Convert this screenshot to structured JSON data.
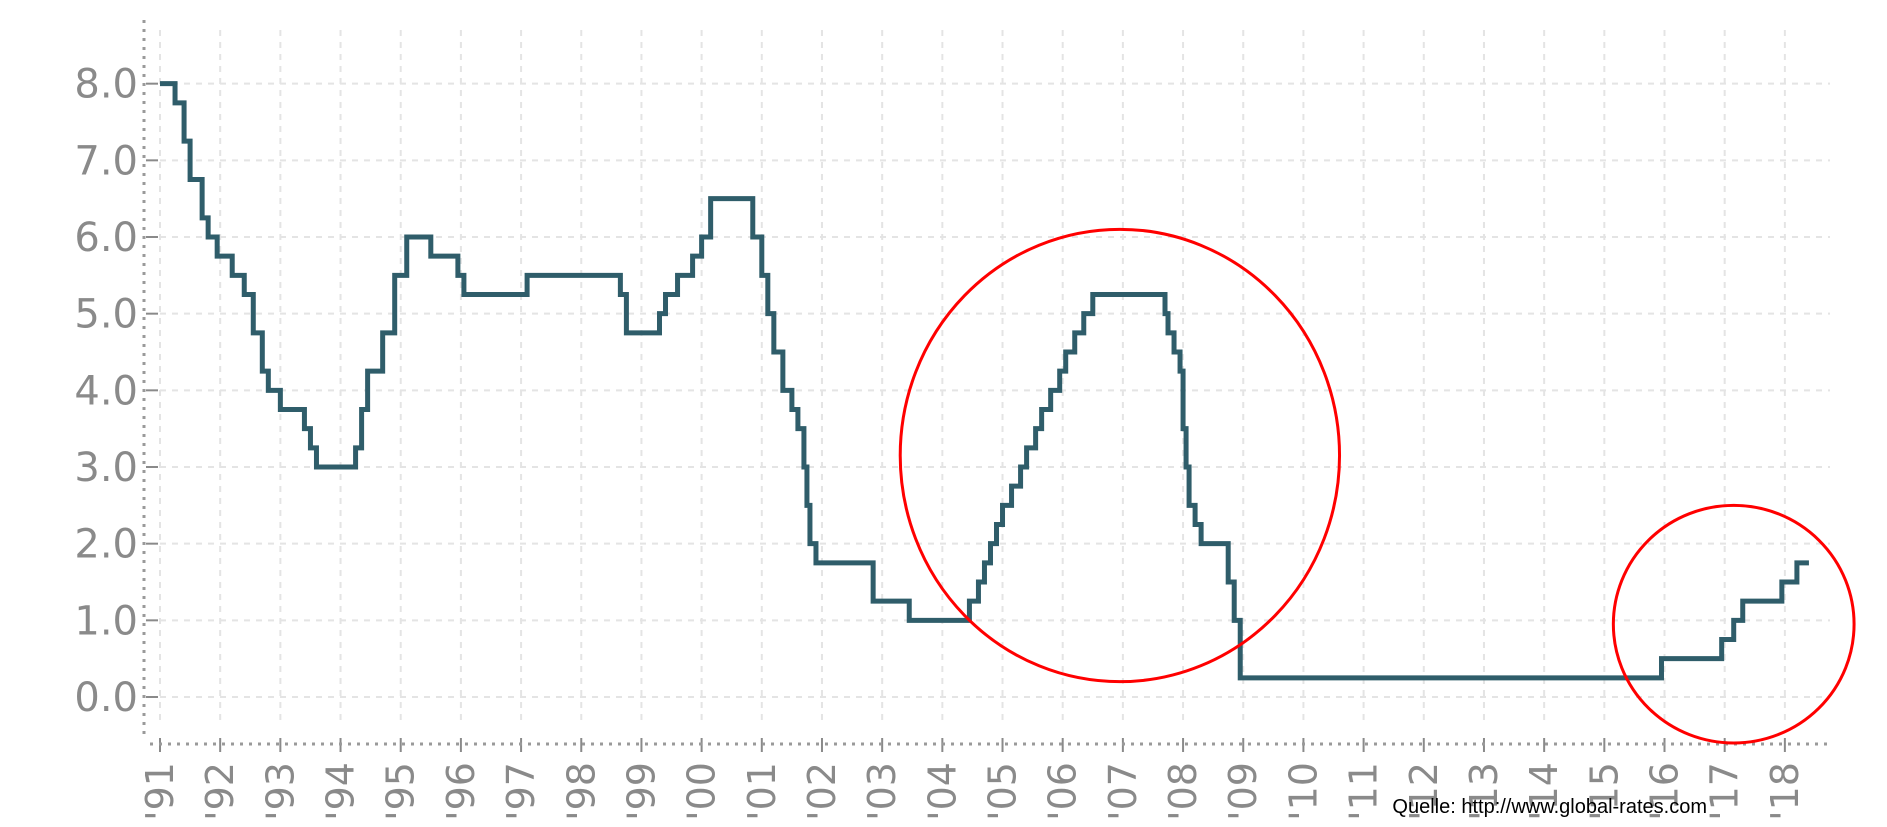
{
  "chart_data": {
    "type": "line",
    "step": true,
    "title": "",
    "xlabel": "",
    "ylabel": "",
    "ylim": [
      -0.3,
      8.7
    ],
    "xlim": [
      1991.0,
      2018.75
    ],
    "grid": true,
    "y_ticks": [
      0.0,
      1.0,
      2.0,
      3.0,
      4.0,
      5.0,
      6.0,
      7.0,
      8.0
    ],
    "y_tick_labels": [
      "0.0",
      "1.0",
      "2.0",
      "3.0",
      "4.0",
      "5.0",
      "6.0",
      "7.0",
      "8.0"
    ],
    "x_ticks": [
      1991,
      1992,
      1993,
      1994,
      1995,
      1996,
      1997,
      1998,
      1999,
      2000,
      2001,
      2002,
      2003,
      2004,
      2005,
      2006,
      2007,
      2008,
      2009,
      2010,
      2011,
      2012,
      2013,
      2014,
      2015,
      2016,
      2017,
      2018
    ],
    "x_tick_labels": [
      "'91",
      "'92",
      "'93",
      "'94",
      "'95",
      "'96",
      "'97",
      "'98",
      "'99",
      "'00",
      "'01",
      "'02",
      "'03",
      "'04",
      "'05",
      "'06",
      "'07",
      "'08",
      "'09",
      "'10",
      "'11",
      "'12",
      "'13",
      "'14",
      "'15",
      "'16",
      "'17",
      "'18"
    ],
    "series": [
      {
        "color": "#2f5d6a",
        "points": [
          [
            1991.0,
            8.0
          ],
          [
            1991.25,
            7.75
          ],
          [
            1991.4,
            7.25
          ],
          [
            1991.5,
            6.75
          ],
          [
            1991.7,
            6.25
          ],
          [
            1991.8,
            6.0
          ],
          [
            1991.95,
            5.75
          ],
          [
            1992.2,
            5.5
          ],
          [
            1992.4,
            5.25
          ],
          [
            1992.55,
            4.75
          ],
          [
            1992.7,
            4.25
          ],
          [
            1992.8,
            4.0
          ],
          [
            1993.0,
            3.75
          ],
          [
            1993.4,
            3.5
          ],
          [
            1993.5,
            3.25
          ],
          [
            1993.6,
            3.0
          ],
          [
            1994.1,
            3.0
          ],
          [
            1994.25,
            3.25
          ],
          [
            1994.35,
            3.75
          ],
          [
            1994.45,
            4.25
          ],
          [
            1994.7,
            4.75
          ],
          [
            1994.9,
            5.5
          ],
          [
            1995.1,
            6.0
          ],
          [
            1995.5,
            5.75
          ],
          [
            1995.95,
            5.5
          ],
          [
            1996.05,
            5.25
          ],
          [
            1997.1,
            5.5
          ],
          [
            1998.65,
            5.25
          ],
          [
            1998.75,
            4.75
          ],
          [
            1999.3,
            5.0
          ],
          [
            1999.4,
            5.25
          ],
          [
            1999.6,
            5.5
          ],
          [
            1999.85,
            5.75
          ],
          [
            2000.0,
            6.0
          ],
          [
            2000.15,
            6.5
          ],
          [
            2000.75,
            6.5
          ],
          [
            2000.85,
            6.0
          ],
          [
            2001.0,
            5.5
          ],
          [
            2001.1,
            5.0
          ],
          [
            2001.2,
            4.5
          ],
          [
            2001.35,
            4.0
          ],
          [
            2001.5,
            3.75
          ],
          [
            2001.6,
            3.5
          ],
          [
            2001.7,
            3.0
          ],
          [
            2001.75,
            2.5
          ],
          [
            2001.8,
            2.0
          ],
          [
            2001.9,
            1.75
          ],
          [
            2002.85,
            1.25
          ],
          [
            2003.45,
            1.0
          ],
          [
            2004.45,
            1.25
          ],
          [
            2004.6,
            1.5
          ],
          [
            2004.7,
            1.75
          ],
          [
            2004.8,
            2.0
          ],
          [
            2004.9,
            2.25
          ],
          [
            2005.0,
            2.5
          ],
          [
            2005.15,
            2.75
          ],
          [
            2005.3,
            3.0
          ],
          [
            2005.4,
            3.25
          ],
          [
            2005.55,
            3.5
          ],
          [
            2005.65,
            3.75
          ],
          [
            2005.8,
            4.0
          ],
          [
            2005.95,
            4.25
          ],
          [
            2006.05,
            4.5
          ],
          [
            2006.2,
            4.75
          ],
          [
            2006.35,
            5.0
          ],
          [
            2006.5,
            5.25
          ],
          [
            2007.7,
            5.0
          ],
          [
            2007.75,
            4.75
          ],
          [
            2007.85,
            4.5
          ],
          [
            2007.95,
            4.25
          ],
          [
            2008.0,
            3.5
          ],
          [
            2008.05,
            3.0
          ],
          [
            2008.1,
            2.5
          ],
          [
            2008.2,
            2.25
          ],
          [
            2008.3,
            2.0
          ],
          [
            2008.75,
            1.5
          ],
          [
            2008.85,
            1.0
          ],
          [
            2008.95,
            0.25
          ],
          [
            2015.95,
            0.5
          ],
          [
            2016.95,
            0.75
          ],
          [
            2017.15,
            1.0
          ],
          [
            2017.3,
            1.25
          ],
          [
            2017.95,
            1.5
          ],
          [
            2018.2,
            1.75
          ],
          [
            2018.4,
            1.75
          ]
        ]
      }
    ],
    "annotations": [
      {
        "shape": "circle",
        "color": "#ff0000",
        "cx": 2006.95,
        "cy": 3.15,
        "rx_years": 3.65,
        "ry_units": 2.95
      },
      {
        "shape": "circle",
        "color": "#ff0000",
        "cx": 2017.15,
        "cy": 0.95,
        "rx_years": 2.0,
        "ry_units": 1.55
      }
    ]
  },
  "source_text": "Quelle: http://www.global-rates.com",
  "colors": {
    "line": "#2f5d6a",
    "grid": "#e4e4e4",
    "ticks": "#8a8a8a",
    "annotation": "#ff0000"
  }
}
